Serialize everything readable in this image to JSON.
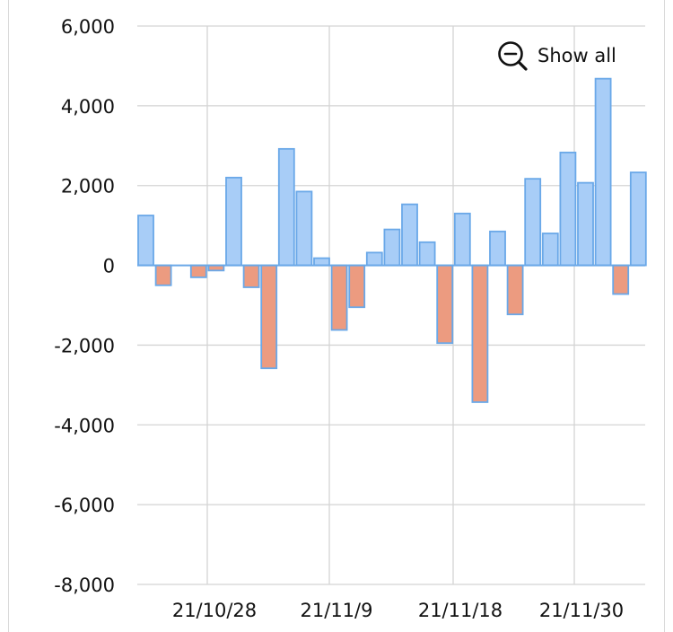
{
  "zoom_control": {
    "label": "Show all",
    "icon": "zoom-out-icon"
  },
  "colors": {
    "positive_fill": "#a8cdf7",
    "positive_stroke": "#6aa8e8",
    "negative_fill": "#ec9b80",
    "negative_stroke": "#6aa8e8",
    "grid": "#d4d4d4",
    "zero_line": "#6aa8e8"
  },
  "chart_data": {
    "type": "bar",
    "ylim": [
      -8000,
      6000
    ],
    "y_ticks": [
      6000,
      4000,
      2000,
      0,
      -2000,
      -4000,
      -6000,
      -8000
    ],
    "y_tick_labels": [
      "6,000",
      "4,000",
      "2,000",
      "0",
      "-2,000",
      "-4,000",
      "-6,000",
      "-8,000"
    ],
    "x_tick_labels": [
      "21/10/28",
      "21/11/9",
      "21/11/18",
      "21/11/30"
    ],
    "grid": true,
    "values": [
      1250,
      -500,
      0,
      -300,
      -130,
      2200,
      -550,
      -2580,
      2920,
      1850,
      180,
      -1620,
      -1050,
      320,
      900,
      1530,
      580,
      -1950,
      1300,
      -3430,
      850,
      -1230,
      2170,
      800,
      2830,
      2070,
      4680,
      -720,
      2330
    ]
  }
}
